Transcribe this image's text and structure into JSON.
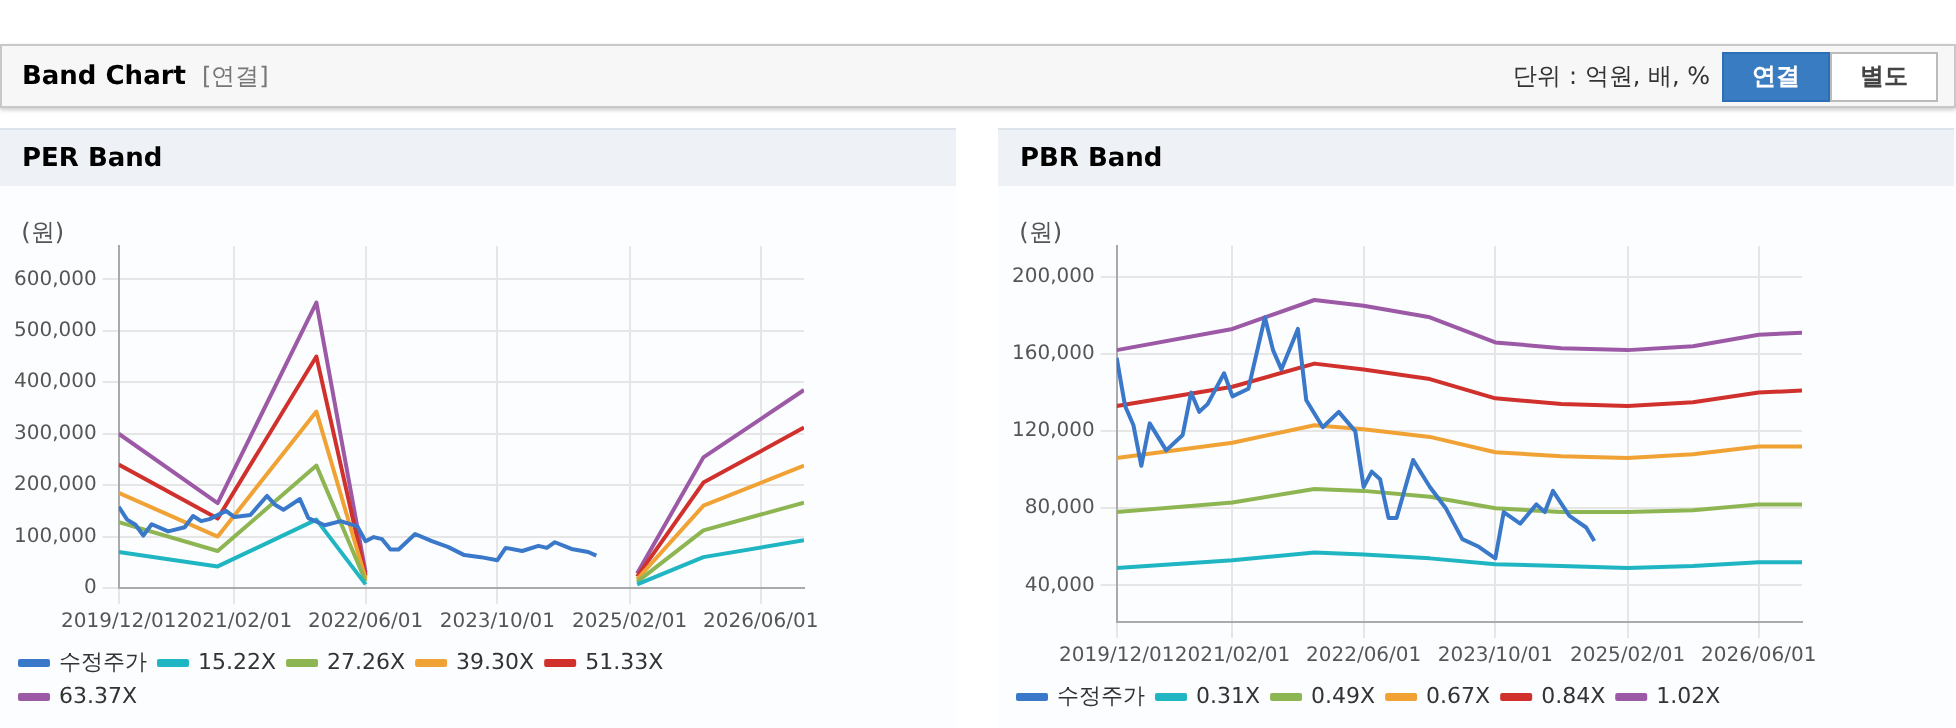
{
  "chart_data": [
    {
      "type": "other",
      "title": "Band Chart",
      "annotations": [
        "[연결]",
        "단위 : 억원, 배, %",
        "연결",
        "별도"
      ]
    },
    {
      "type": "line",
      "title": "PER Band",
      "ylabel": "(원)",
      "grid": true,
      "legend": "bottom",
      "marker": "none",
      "line_style": "solid",
      "xlim": [
        "2019-12-01",
        "2026-11-08"
      ],
      "ylim": [
        0,
        665000
      ],
      "xticks": [
        {
          "value": "2019-12-01",
          "label": "2019/12/01"
        },
        {
          "value": "2021-02-01",
          "label": "2021/02/01"
        },
        {
          "value": "2022-06-01",
          "label": "2022/06/01"
        },
        {
          "value": "2023-10-01",
          "label": "2023/10/01"
        },
        {
          "value": "2025-02-01",
          "label": "2025/02/01"
        },
        {
          "value": "2026-06-01",
          "label": "2026/06/01"
        }
      ],
      "yticks": [
        0,
        {
          "value": 100000,
          "label": "100,000"
        },
        {
          "value": 200000,
          "label": "200,000"
        },
        {
          "value": 300000,
          "label": "300,000"
        },
        {
          "value": 400000,
          "label": "400,000"
        },
        {
          "value": 500000,
          "label": "500,000"
        },
        {
          "value": 600000,
          "label": "600,000"
        }
      ],
      "series": [
        {
          "name": "수정주가",
          "color": "#3a78c9",
          "x": [
            "2019-12-01",
            "2020-01-01",
            "2020-02-01",
            "2020-03-01",
            "2020-04-01",
            "2020-06-01",
            "2020-08-01",
            "2020-09-01",
            "2020-10-01",
            "2020-11-01",
            "2021-01-01",
            "2021-02-01",
            "2021-04-01",
            "2021-06-01",
            "2021-07-01",
            "2021-08-01",
            "2021-10-01",
            "2021-11-01",
            "2022-01-01",
            "2022-03-01",
            "2022-05-01",
            "2022-06-01",
            "2022-07-01",
            "2022-08-01",
            "2022-09-01",
            "2022-10-01",
            "2022-12-01",
            "2023-02-01",
            "2023-04-01",
            "2023-06-01",
            "2023-08-01",
            "2023-10-01",
            "2023-11-01",
            "2024-01-01",
            "2024-03-01",
            "2024-04-01",
            "2024-05-01",
            "2024-07-01",
            "2024-09-01",
            "2024-10-01"
          ],
          "values": [
            158000,
            133000,
            123000,
            102000,
            124000,
            110000,
            118000,
            140000,
            130000,
            134000,
            150000,
            138000,
            142000,
            179000,
            162000,
            152000,
            173000,
            136000,
            122000,
            130000,
            120000,
            91000,
            99000,
            95000,
            75000,
            75000,
            105000,
            91000,
            80000,
            64000,
            60000,
            54000,
            78000,
            72000,
            82000,
            78000,
            89000,
            76000,
            70000,
            63000
          ]
        },
        {
          "name": "15.22X",
          "color": "#1fb5c2",
          "x": [
            "2019-12-01",
            "2020-12-01",
            "2021-12-01",
            "2022-06-01",
            "2023-10-01",
            "2025-03-01",
            "2025-11-01",
            "2026-11-08"
          ],
          "values": [
            70000,
            42000,
            133000,
            7000,
            null,
            7000,
            60000,
            93000
          ]
        },
        {
          "name": "27.26X",
          "color": "#8db552",
          "x": [
            "2019-12-01",
            "2020-12-01",
            "2021-12-01",
            "2022-06-01",
            "2023-10-01",
            "2025-03-01",
            "2025-11-01",
            "2026-11-08"
          ],
          "values": [
            128000,
            72000,
            238000,
            13000,
            null,
            12000,
            112000,
            166000
          ]
        },
        {
          "name": "39.30X",
          "color": "#f0a234",
          "x": [
            "2019-12-01",
            "2020-12-01",
            "2021-12-01",
            "2022-06-01",
            "2023-10-01",
            "2025-03-01",
            "2025-11-01",
            "2026-11-08"
          ],
          "values": [
            185000,
            100000,
            343000,
            18000,
            null,
            17000,
            160000,
            238000
          ]
        },
        {
          "name": "51.33X",
          "color": "#d0312d",
          "x": [
            "2019-12-01",
            "2020-12-01",
            "2021-12-01",
            "2022-06-01",
            "2023-10-01",
            "2025-03-01",
            "2025-11-01",
            "2026-11-08"
          ],
          "values": [
            240000,
            135000,
            450000,
            24000,
            null,
            22000,
            205000,
            312000
          ]
        },
        {
          "name": "63.37X",
          "color": "#9b59a6",
          "x": [
            "2019-12-01",
            "2020-12-01",
            "2021-12-01",
            "2022-06-01",
            "2023-10-01",
            "2025-03-01",
            "2025-11-01",
            "2026-11-08"
          ],
          "values": [
            300000,
            165000,
            555000,
            30000,
            null,
            28000,
            254000,
            385000
          ]
        }
      ]
    },
    {
      "type": "line",
      "title": "PBR Band",
      "ylabel": "(원)",
      "grid": true,
      "legend": "bottom",
      "marker": "none",
      "line_style": "solid",
      "xlim": [
        "2019-12-01",
        "2026-11-08"
      ],
      "ylim": [
        21000,
        216000
      ],
      "xticks": [
        {
          "value": "2019-12-01",
          "label": "2019/12/01"
        },
        {
          "value": "2021-02-01",
          "label": "2021/02/01"
        },
        {
          "value": "2022-06-01",
          "label": "2022/06/01"
        },
        {
          "value": "2023-10-01",
          "label": "2023/10/01"
        },
        {
          "value": "2025-02-01",
          "label": "2025/02/01"
        },
        {
          "value": "2026-06-01",
          "label": "2026/06/01"
        }
      ],
      "yticks": [
        {
          "value": 40000,
          "label": "40,000"
        },
        {
          "value": 80000,
          "label": "80,000"
        },
        {
          "value": 120000,
          "label": "120,000"
        },
        {
          "value": 160000,
          "label": "160,000"
        },
        {
          "value": 200000,
          "label": "200,000"
        }
      ],
      "series": [
        {
          "name": "수정주가",
          "color": "#3a78c9",
          "x": [
            "2019-12-01",
            "2020-01-01",
            "2020-02-01",
            "2020-03-01",
            "2020-04-01",
            "2020-06-01",
            "2020-08-01",
            "2020-09-01",
            "2020-10-01",
            "2020-11-01",
            "2021-01-01",
            "2021-02-01",
            "2021-04-01",
            "2021-06-01",
            "2021-07-01",
            "2021-08-01",
            "2021-10-01",
            "2021-11-01",
            "2022-01-01",
            "2022-03-01",
            "2022-05-01",
            "2022-06-01",
            "2022-07-01",
            "2022-08-01",
            "2022-09-01",
            "2022-10-01",
            "2022-12-01",
            "2023-02-01",
            "2023-04-01",
            "2023-06-01",
            "2023-08-01",
            "2023-10-01",
            "2023-11-01",
            "2024-01-01",
            "2024-03-01",
            "2024-04-01",
            "2024-05-01",
            "2024-07-01",
            "2024-09-01",
            "2024-10-01"
          ],
          "values": [
            158000,
            133000,
            123000,
            102000,
            124000,
            110000,
            118000,
            140000,
            130000,
            134000,
            150000,
            138000,
            142000,
            179000,
            162000,
            152000,
            173000,
            136000,
            122000,
            130000,
            120000,
            91000,
            99000,
            95000,
            75000,
            75000,
            105000,
            91000,
            80000,
            64000,
            60000,
            54000,
            78000,
            72000,
            82000,
            78000,
            89000,
            76000,
            70000,
            63000
          ]
        },
        {
          "name": "0.31X",
          "color": "#1fb5c2",
          "x": [
            "2019-12-01",
            "2021-02-01",
            "2021-12-01",
            "2022-06-01",
            "2023-02-01",
            "2023-10-01",
            "2024-06-01",
            "2025-02-01",
            "2025-10-01",
            "2026-06-01",
            "2026-11-08"
          ],
          "values": [
            49000,
            53000,
            57000,
            56000,
            54000,
            51000,
            50000,
            49000,
            50000,
            52000,
            52000
          ]
        },
        {
          "name": "0.49X",
          "color": "#8db552",
          "x": [
            "2019-12-01",
            "2021-02-01",
            "2021-12-01",
            "2022-06-01",
            "2023-02-01",
            "2023-10-01",
            "2024-06-01",
            "2025-02-01",
            "2025-10-01",
            "2026-06-01",
            "2026-11-08"
          ],
          "values": [
            78000,
            83000,
            90000,
            89000,
            86000,
            80000,
            78000,
            78000,
            79000,
            82000,
            82000
          ]
        },
        {
          "name": "0.67X",
          "color": "#f0a234",
          "x": [
            "2019-12-01",
            "2021-02-01",
            "2021-12-01",
            "2022-06-01",
            "2023-02-01",
            "2023-10-01",
            "2024-06-01",
            "2025-02-01",
            "2025-10-01",
            "2026-06-01",
            "2026-11-08"
          ],
          "values": [
            106000,
            114000,
            123000,
            121000,
            117000,
            109000,
            107000,
            106000,
            108000,
            112000,
            112000
          ]
        },
        {
          "name": "0.84X",
          "color": "#d0312d",
          "x": [
            "2019-12-01",
            "2021-02-01",
            "2021-12-01",
            "2022-06-01",
            "2023-02-01",
            "2023-10-01",
            "2024-06-01",
            "2025-02-01",
            "2025-10-01",
            "2026-06-01",
            "2026-11-08"
          ],
          "values": [
            133000,
            143000,
            155000,
            152000,
            147000,
            137000,
            134000,
            133000,
            135000,
            140000,
            141000
          ]
        },
        {
          "name": "1.02X",
          "color": "#9b59a6",
          "x": [
            "2019-12-01",
            "2021-02-01",
            "2021-12-01",
            "2022-06-01",
            "2023-02-01",
            "2023-10-01",
            "2024-06-01",
            "2025-02-01",
            "2025-10-01",
            "2026-06-01",
            "2026-11-08"
          ],
          "values": [
            162000,
            173000,
            188000,
            185000,
            179000,
            166000,
            163000,
            162000,
            164000,
            170000,
            171000
          ]
        }
      ]
    }
  ]
}
